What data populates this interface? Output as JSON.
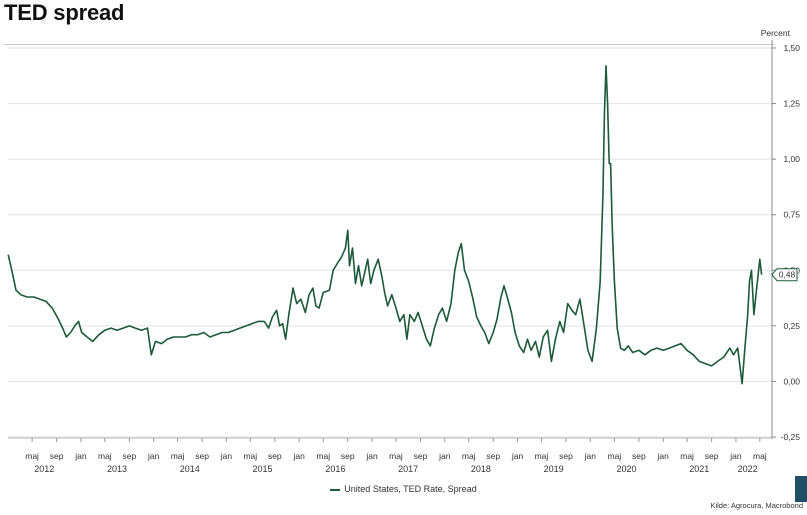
{
  "chart_data": {
    "type": "line",
    "title": "TED spread",
    "unit_label": "Percent",
    "ylim": [
      -0.25,
      1.5
    ],
    "y_ticks": [
      1.5,
      1.25,
      1.0,
      0.75,
      0.5,
      0.25,
      0.0,
      -0.25
    ],
    "y_tick_labels": [
      "1,50",
      "1,25",
      "1,00",
      "0,75",
      "0,50",
      "0,25",
      "0,00",
      "-0,25"
    ],
    "x_range": [
      "2012-01-01",
      "2022-07-01"
    ],
    "month_ticks": [
      {
        "label": "maj",
        "date": "2012-05-01"
      },
      {
        "label": "sep",
        "date": "2012-09-01"
      },
      {
        "label": "jan",
        "date": "2013-01-01"
      },
      {
        "label": "maj",
        "date": "2013-05-01"
      },
      {
        "label": "sep",
        "date": "2013-09-01"
      },
      {
        "label": "jan",
        "date": "2014-01-01"
      },
      {
        "label": "maj",
        "date": "2014-05-01"
      },
      {
        "label": "sep",
        "date": "2014-09-01"
      },
      {
        "label": "jan",
        "date": "2015-01-01"
      },
      {
        "label": "maj",
        "date": "2015-05-01"
      },
      {
        "label": "sep",
        "date": "2015-09-01"
      },
      {
        "label": "jan",
        "date": "2016-01-01"
      },
      {
        "label": "maj",
        "date": "2016-05-01"
      },
      {
        "label": "sep",
        "date": "2016-09-01"
      },
      {
        "label": "jan",
        "date": "2017-01-01"
      },
      {
        "label": "maj",
        "date": "2017-05-01"
      },
      {
        "label": "sep",
        "date": "2017-09-01"
      },
      {
        "label": "jan",
        "date": "2018-01-01"
      },
      {
        "label": "maj",
        "date": "2018-05-01"
      },
      {
        "label": "sep",
        "date": "2018-09-01"
      },
      {
        "label": "jan",
        "date": "2019-01-01"
      },
      {
        "label": "maj",
        "date": "2019-05-01"
      },
      {
        "label": "sep",
        "date": "2019-09-01"
      },
      {
        "label": "jan",
        "date": "2020-01-01"
      },
      {
        "label": "maj",
        "date": "2020-05-01"
      },
      {
        "label": "sep",
        "date": "2020-09-01"
      },
      {
        "label": "jan",
        "date": "2021-01-01"
      },
      {
        "label": "maj",
        "date": "2021-05-01"
      },
      {
        "label": "sep",
        "date": "2021-09-01"
      },
      {
        "label": "jan",
        "date": "2022-01-01"
      },
      {
        "label": "maj",
        "date": "2022-05-01"
      }
    ],
    "year_labels": [
      {
        "label": "2012",
        "date": "2012-07-01"
      },
      {
        "label": "2013",
        "date": "2013-07-01"
      },
      {
        "label": "2014",
        "date": "2014-07-01"
      },
      {
        "label": "2015",
        "date": "2015-07-01"
      },
      {
        "label": "2016",
        "date": "2016-07-01"
      },
      {
        "label": "2017",
        "date": "2017-07-01"
      },
      {
        "label": "2018",
        "date": "2018-07-01"
      },
      {
        "label": "2019",
        "date": "2019-07-01"
      },
      {
        "label": "2020",
        "date": "2020-07-01"
      },
      {
        "label": "2021",
        "date": "2021-07-01"
      },
      {
        "label": "2022",
        "date": "2022-03-01"
      }
    ],
    "series": [
      {
        "name": "United States, TED Rate, Spread",
        "color": "#1c5a3a",
        "last_value_label": "0,48",
        "points": [
          [
            "2012-01-02",
            0.57
          ],
          [
            "2012-01-20",
            0.5
          ],
          [
            "2012-02-10",
            0.41
          ],
          [
            "2012-03-05",
            0.39
          ],
          [
            "2012-04-05",
            0.38
          ],
          [
            "2012-05-10",
            0.38
          ],
          [
            "2012-06-10",
            0.37
          ],
          [
            "2012-07-10",
            0.36
          ],
          [
            "2012-08-10",
            0.33
          ],
          [
            "2012-09-10",
            0.28
          ],
          [
            "2012-10-01",
            0.24
          ],
          [
            "2012-10-20",
            0.2
          ],
          [
            "2012-11-10",
            0.22
          ],
          [
            "2012-12-01",
            0.25
          ],
          [
            "2012-12-20",
            0.27
          ],
          [
            "2013-01-05",
            0.22
          ],
          [
            "2013-02-01",
            0.2
          ],
          [
            "2013-03-01",
            0.18
          ],
          [
            "2013-04-01",
            0.21
          ],
          [
            "2013-05-01",
            0.23
          ],
          [
            "2013-06-01",
            0.24
          ],
          [
            "2013-07-01",
            0.23
          ],
          [
            "2013-08-01",
            0.24
          ],
          [
            "2013-09-01",
            0.25
          ],
          [
            "2013-10-01",
            0.24
          ],
          [
            "2013-11-01",
            0.23
          ],
          [
            "2013-12-01",
            0.24
          ],
          [
            "2013-12-20",
            0.12
          ],
          [
            "2014-01-10",
            0.18
          ],
          [
            "2014-02-10",
            0.17
          ],
          [
            "2014-03-10",
            0.19
          ],
          [
            "2014-04-10",
            0.2
          ],
          [
            "2014-05-10",
            0.2
          ],
          [
            "2014-06-10",
            0.2
          ],
          [
            "2014-07-10",
            0.21
          ],
          [
            "2014-08-10",
            0.21
          ],
          [
            "2014-09-10",
            0.22
          ],
          [
            "2014-10-10",
            0.2
          ],
          [
            "2014-11-10",
            0.21
          ],
          [
            "2014-12-10",
            0.22
          ],
          [
            "2015-01-10",
            0.22
          ],
          [
            "2015-02-10",
            0.23
          ],
          [
            "2015-03-10",
            0.24
          ],
          [
            "2015-04-10",
            0.25
          ],
          [
            "2015-05-10",
            0.26
          ],
          [
            "2015-06-10",
            0.27
          ],
          [
            "2015-07-10",
            0.27
          ],
          [
            "2015-08-01",
            0.24
          ],
          [
            "2015-08-20",
            0.29
          ],
          [
            "2015-09-10",
            0.32
          ],
          [
            "2015-09-25",
            0.25
          ],
          [
            "2015-10-10",
            0.26
          ],
          [
            "2015-10-25",
            0.19
          ],
          [
            "2015-11-10",
            0.3
          ],
          [
            "2015-12-01",
            0.42
          ],
          [
            "2015-12-20",
            0.35
          ],
          [
            "2016-01-10",
            0.37
          ],
          [
            "2016-02-01",
            0.31
          ],
          [
            "2016-02-20",
            0.39
          ],
          [
            "2016-03-10",
            0.42
          ],
          [
            "2016-03-25",
            0.34
          ],
          [
            "2016-04-10",
            0.33
          ],
          [
            "2016-05-01",
            0.4
          ],
          [
            "2016-06-01",
            0.41
          ],
          [
            "2016-06-20",
            0.5
          ],
          [
            "2016-07-10",
            0.53
          ],
          [
            "2016-08-01",
            0.56
          ],
          [
            "2016-08-20",
            0.6
          ],
          [
            "2016-09-01",
            0.68
          ],
          [
            "2016-09-10",
            0.52
          ],
          [
            "2016-09-25",
            0.6
          ],
          [
            "2016-10-10",
            0.44
          ],
          [
            "2016-10-25",
            0.52
          ],
          [
            "2016-11-10",
            0.43
          ],
          [
            "2016-11-25",
            0.49
          ],
          [
            "2016-12-10",
            0.55
          ],
          [
            "2016-12-25",
            0.44
          ],
          [
            "2017-01-10",
            0.5
          ],
          [
            "2017-02-01",
            0.55
          ],
          [
            "2017-02-20",
            0.47
          ],
          [
            "2017-03-05",
            0.4
          ],
          [
            "2017-03-20",
            0.34
          ],
          [
            "2017-04-10",
            0.39
          ],
          [
            "2017-05-01",
            0.33
          ],
          [
            "2017-05-20",
            0.27
          ],
          [
            "2017-06-10",
            0.3
          ],
          [
            "2017-06-25",
            0.19
          ],
          [
            "2017-07-10",
            0.3
          ],
          [
            "2017-08-01",
            0.27
          ],
          [
            "2017-08-20",
            0.31
          ],
          [
            "2017-09-10",
            0.25
          ],
          [
            "2017-10-01",
            0.19
          ],
          [
            "2017-10-20",
            0.16
          ],
          [
            "2017-11-10",
            0.24
          ],
          [
            "2017-12-01",
            0.3
          ],
          [
            "2017-12-20",
            0.33
          ],
          [
            "2018-01-10",
            0.27
          ],
          [
            "2018-02-01",
            0.35
          ],
          [
            "2018-02-20",
            0.5
          ],
          [
            "2018-03-10",
            0.58
          ],
          [
            "2018-03-25",
            0.62
          ],
          [
            "2018-04-10",
            0.5
          ],
          [
            "2018-05-01",
            0.45
          ],
          [
            "2018-05-20",
            0.38
          ],
          [
            "2018-06-10",
            0.29
          ],
          [
            "2018-07-01",
            0.25
          ],
          [
            "2018-07-20",
            0.22
          ],
          [
            "2018-08-10",
            0.17
          ],
          [
            "2018-09-01",
            0.22
          ],
          [
            "2018-09-20",
            0.28
          ],
          [
            "2018-10-10",
            0.38
          ],
          [
            "2018-10-25",
            0.43
          ],
          [
            "2018-11-10",
            0.38
          ],
          [
            "2018-12-01",
            0.31
          ],
          [
            "2018-12-20",
            0.22
          ],
          [
            "2019-01-10",
            0.16
          ],
          [
            "2019-02-01",
            0.13
          ],
          [
            "2019-02-20",
            0.19
          ],
          [
            "2019-03-10",
            0.14
          ],
          [
            "2019-04-01",
            0.18
          ],
          [
            "2019-04-20",
            0.11
          ],
          [
            "2019-05-10",
            0.2
          ],
          [
            "2019-06-01",
            0.23
          ],
          [
            "2019-06-20",
            0.09
          ],
          [
            "2019-07-10",
            0.19
          ],
          [
            "2019-08-01",
            0.27
          ],
          [
            "2019-08-20",
            0.22
          ],
          [
            "2019-09-10",
            0.35
          ],
          [
            "2019-10-01",
            0.32
          ],
          [
            "2019-10-20",
            0.3
          ],
          [
            "2019-11-10",
            0.37
          ],
          [
            "2019-12-01",
            0.25
          ],
          [
            "2019-12-20",
            0.14
          ],
          [
            "2020-01-10",
            0.09
          ],
          [
            "2020-02-01",
            0.24
          ],
          [
            "2020-02-20",
            0.45
          ],
          [
            "2020-03-05",
            0.85
          ],
          [
            "2020-03-12",
            1.2
          ],
          [
            "2020-03-20",
            1.42
          ],
          [
            "2020-03-28",
            1.25
          ],
          [
            "2020-04-05",
            0.98
          ],
          [
            "2020-04-12",
            0.98
          ],
          [
            "2020-04-20",
            0.7
          ],
          [
            "2020-05-01",
            0.45
          ],
          [
            "2020-05-15",
            0.24
          ],
          [
            "2020-06-01",
            0.15
          ],
          [
            "2020-06-20",
            0.14
          ],
          [
            "2020-07-10",
            0.16
          ],
          [
            "2020-08-01",
            0.13
          ],
          [
            "2020-09-01",
            0.14
          ],
          [
            "2020-10-01",
            0.12
          ],
          [
            "2020-11-01",
            0.14
          ],
          [
            "2020-12-01",
            0.15
          ],
          [
            "2021-01-01",
            0.14
          ],
          [
            "2021-02-01",
            0.15
          ],
          [
            "2021-03-01",
            0.16
          ],
          [
            "2021-04-01",
            0.17
          ],
          [
            "2021-05-01",
            0.14
          ],
          [
            "2021-06-01",
            0.12
          ],
          [
            "2021-07-01",
            0.09
          ],
          [
            "2021-08-01",
            0.08
          ],
          [
            "2021-09-01",
            0.07
          ],
          [
            "2021-10-01",
            0.09
          ],
          [
            "2021-11-01",
            0.11
          ],
          [
            "2021-12-01",
            0.15
          ],
          [
            "2021-12-20",
            0.12
          ],
          [
            "2022-01-10",
            0.15
          ],
          [
            "2022-02-01",
            -0.01
          ],
          [
            "2022-02-15",
            0.15
          ],
          [
            "2022-03-01",
            0.3
          ],
          [
            "2022-03-10",
            0.45
          ],
          [
            "2022-03-20",
            0.5
          ],
          [
            "2022-04-01",
            0.3
          ],
          [
            "2022-04-15",
            0.42
          ],
          [
            "2022-05-01",
            0.55
          ],
          [
            "2022-05-10",
            0.48
          ]
        ]
      }
    ],
    "legend_position": "bottom",
    "source_text": "Kilde: Agrocura, Macrobond"
  }
}
